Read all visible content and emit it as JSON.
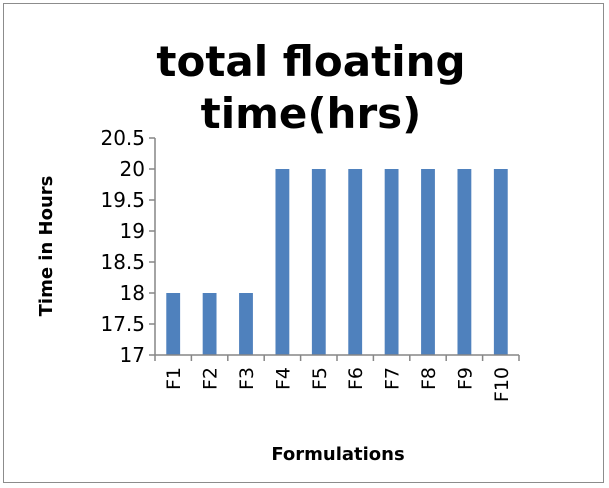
{
  "chart_data": {
    "type": "bar",
    "title_lines": [
      "total floating",
      "time(hrs)"
    ],
    "xlabel": "Formulations",
    "ylabel": "Time in Hours",
    "categories": [
      "F1",
      "F2",
      "F3",
      "F4",
      "F5",
      "F6",
      "F7",
      "F8",
      "F9",
      "F10"
    ],
    "values": [
      18,
      18,
      18,
      20,
      20,
      20,
      20,
      20,
      20,
      20
    ],
    "ylim": [
      17,
      20.5
    ],
    "yticks": [
      "17",
      "17.5",
      "18",
      "18.5",
      "19",
      "19.5",
      "20",
      "20.5"
    ],
    "bar_color": "#4f81bd",
    "grid": false,
    "legend": "none"
  }
}
